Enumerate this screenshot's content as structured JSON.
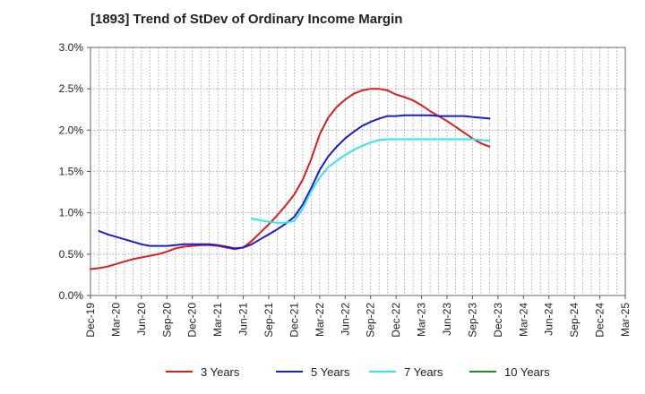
{
  "chart_data": {
    "type": "line",
    "title": "[1893]  Trend of StDev of Ordinary Income Margin",
    "xlabel": "",
    "ylabel": "",
    "x_tick_labels": [
      "Dec-19",
      "Mar-20",
      "Jun-20",
      "Sep-20",
      "Dec-20",
      "Mar-21",
      "Jun-21",
      "Sep-21",
      "Dec-21",
      "Mar-22",
      "Jun-22",
      "Sep-22",
      "Dec-22",
      "Mar-23",
      "Jun-23",
      "Sep-23",
      "Dec-23",
      "Mar-24",
      "Jun-24",
      "Sep-24",
      "Dec-24",
      "Mar-25"
    ],
    "y_tick_labels": [
      "0.0%",
      "0.5%",
      "1.0%",
      "1.5%",
      "2.0%",
      "2.5%",
      "3.0%"
    ],
    "ylim": [
      0,
      3.0
    ],
    "grid": true,
    "legend_position": "bottom",
    "series": [
      {
        "name": "3 Years",
        "color": "#dd1c1c",
        "values": [
          0.32,
          0.33,
          0.35,
          0.38,
          0.41,
          0.44,
          0.46,
          0.48,
          0.5,
          0.53,
          0.57,
          0.59,
          0.6,
          0.61,
          0.61,
          0.6,
          0.58,
          0.56,
          0.58,
          0.66,
          0.76,
          0.86,
          0.97,
          1.09,
          1.22,
          1.4,
          1.65,
          1.95,
          2.15,
          2.28,
          2.37,
          2.44,
          2.48,
          2.5,
          2.5,
          2.48,
          2.43,
          2.4,
          2.36,
          2.3,
          2.23,
          2.17,
          2.11,
          2.04,
          1.97,
          1.9,
          1.84,
          1.8
        ]
      },
      {
        "name": "5 Years",
        "color": "#1c1ccc",
        "values": [
          null,
          0.78,
          0.74,
          0.71,
          0.68,
          0.65,
          0.62,
          0.6,
          0.6,
          0.6,
          0.61,
          0.62,
          0.62,
          0.62,
          0.62,
          0.61,
          0.59,
          0.57,
          0.58,
          0.62,
          0.68,
          0.74,
          0.8,
          0.87,
          0.95,
          1.1,
          1.3,
          1.52,
          1.68,
          1.8,
          1.9,
          1.98,
          2.05,
          2.1,
          2.14,
          2.17,
          2.17,
          2.18,
          2.18,
          2.18,
          2.18,
          2.17,
          2.17,
          2.17,
          2.17,
          2.16,
          2.15,
          2.14
        ]
      },
      {
        "name": "7 Years",
        "color": "#33e6e6",
        "values": [
          null,
          null,
          null,
          null,
          null,
          null,
          null,
          null,
          null,
          null,
          null,
          null,
          null,
          null,
          null,
          null,
          null,
          null,
          null,
          0.93,
          0.91,
          0.89,
          0.88,
          0.88,
          0.9,
          1.05,
          1.26,
          1.43,
          1.55,
          1.63,
          1.7,
          1.76,
          1.81,
          1.85,
          1.88,
          1.89,
          1.89,
          1.89,
          1.89,
          1.89,
          1.89,
          1.89,
          1.89,
          1.89,
          1.89,
          1.89,
          1.88,
          1.87
        ]
      },
      {
        "name": "10 Years",
        "color": "#228822",
        "values": []
      }
    ]
  }
}
